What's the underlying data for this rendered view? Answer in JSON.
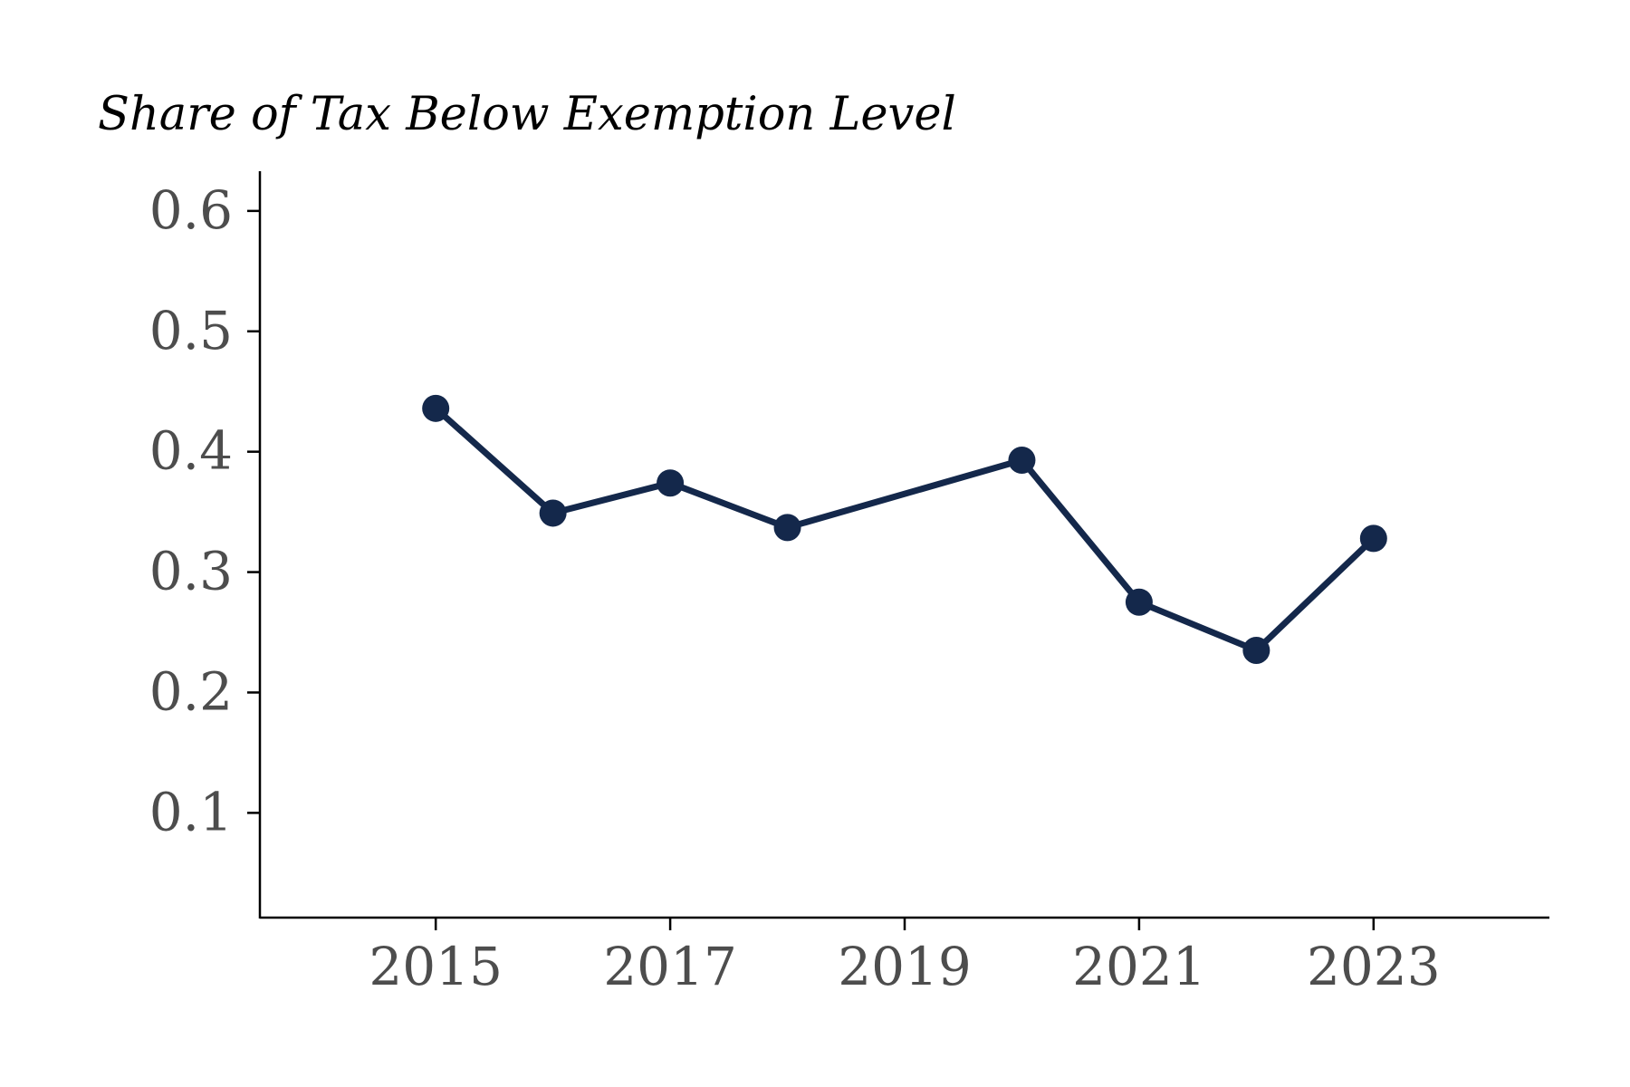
{
  "chart_data": {
    "type": "line",
    "title": "Share of Tax Below Exemption Level",
    "xlabel": "",
    "ylabel": "",
    "x": [
      2015,
      2016,
      2017,
      2018,
      2020,
      2021,
      2022,
      2023
    ],
    "series": [
      {
        "values": [
          0.436,
          0.349,
          0.374,
          0.337,
          0.393,
          0.275,
          0.235,
          0.328
        ]
      }
    ],
    "xticks": [
      2015,
      2017,
      2019,
      2021,
      2023
    ],
    "xtick_labels": [
      "2015",
      "2017",
      "2019",
      "2021",
      "2023"
    ],
    "yticks": [
      0.1,
      0.2,
      0.3,
      0.4,
      0.5,
      0.6
    ],
    "ytick_labels": [
      "0.1",
      "0.2",
      "0.3",
      "0.4",
      "0.5",
      "0.6"
    ],
    "xlim": [
      2013.5,
      2024.5
    ],
    "ylim": [
      0.013,
      0.633
    ],
    "grid": false,
    "legend": "none",
    "line_color": "#14284b"
  }
}
